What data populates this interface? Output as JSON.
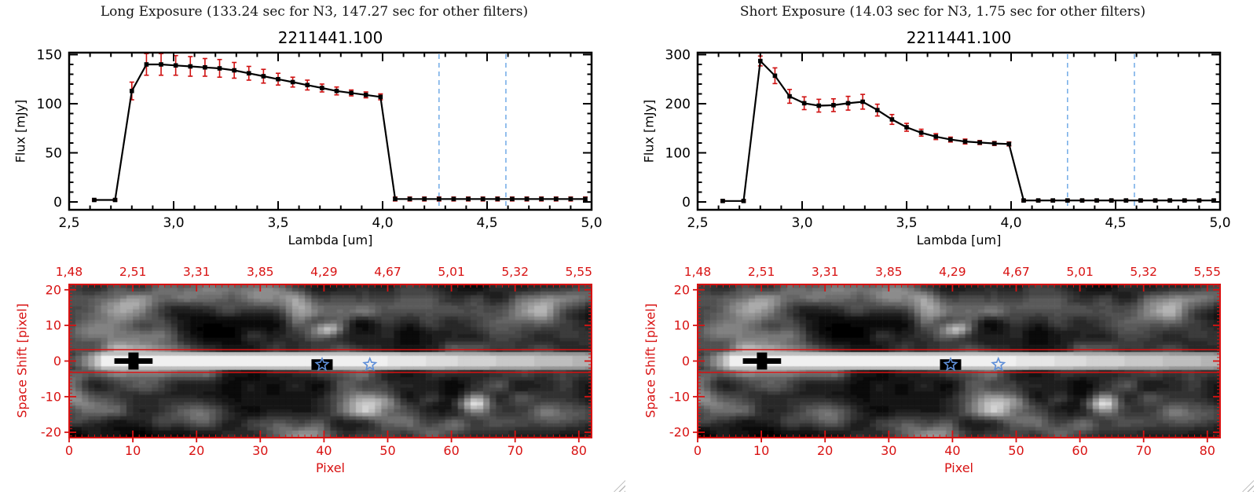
{
  "colors": {
    "axis_red": "#d81212",
    "line_black": "#000000",
    "error_red": "#cf1010",
    "guide_blue": "#7ab0e8",
    "star_blue": "#5f8fd8",
    "background": "#ffffff"
  },
  "chart_data": [
    {
      "type": "line",
      "window_title": "Long Exposure (133.24 sec for N3, 147.27 sec for other filters)",
      "title": "2211441.100",
      "xlabel": "Lambda [um]",
      "ylabel": "Flux [mJy]",
      "xlim": [
        2.5,
        5.0
      ],
      "ylim": [
        -8,
        152
      ],
      "xticks": [
        2.5,
        3.0,
        3.5,
        4.0,
        4.5,
        5.0
      ],
      "xtick_labels": [
        "2,5",
        "3,0",
        "3,5",
        "4,0",
        "4,5",
        "5,0"
      ],
      "yticks": [
        0,
        50,
        100,
        150
      ],
      "ytick_labels": [
        "0",
        "50",
        "100",
        "150"
      ],
      "x": [
        2.62,
        2.72,
        2.8,
        2.87,
        2.94,
        3.01,
        3.08,
        3.15,
        3.22,
        3.29,
        3.36,
        3.43,
        3.5,
        3.57,
        3.64,
        3.71,
        3.78,
        3.85,
        3.92,
        3.99,
        4.06,
        4.13,
        4.2,
        4.27,
        4.34,
        4.41,
        4.48,
        4.55,
        4.62,
        4.69,
        4.76,
        4.83,
        4.9,
        4.97
      ],
      "y": [
        2,
        2,
        113,
        140,
        140,
        139,
        138,
        137,
        136,
        134,
        131,
        128,
        125,
        122,
        119,
        116,
        113,
        111,
        109,
        107,
        3,
        3,
        3,
        3,
        3,
        3,
        3,
        3,
        3,
        3,
        3,
        3,
        3,
        3
      ],
      "yerr": [
        1,
        1,
        9,
        11,
        11,
        10,
        10,
        9,
        9,
        8,
        7,
        7,
        6,
        5,
        5,
        4,
        4,
        3,
        3,
        3,
        2,
        2,
        2,
        2,
        2,
        2,
        2,
        2,
        2,
        2,
        2,
        2,
        2,
        2
      ],
      "guide_lines_x": [
        4.27,
        4.59
      ],
      "marker": "square",
      "legend": "none",
      "grid": false
    },
    {
      "type": "line",
      "window_title": "Short Exposure (14.03 sec for N3, 1.75 sec for other filters)",
      "title": "2211441.100",
      "xlabel": "Lambda [um]",
      "ylabel": "Flux [mJy]",
      "xlim": [
        2.5,
        5.0
      ],
      "ylim": [
        -16,
        304
      ],
      "xticks": [
        2.5,
        3.0,
        3.5,
        4.0,
        4.5,
        5.0
      ],
      "xtick_labels": [
        "2,5",
        "3,0",
        "3,5",
        "4,0",
        "4,5",
        "5,0"
      ],
      "yticks": [
        0,
        100,
        200,
        300
      ],
      "ytick_labels": [
        "0",
        "100",
        "200",
        "300"
      ],
      "x": [
        2.62,
        2.72,
        2.8,
        2.87,
        2.94,
        3.01,
        3.08,
        3.15,
        3.22,
        3.29,
        3.36,
        3.43,
        3.5,
        3.57,
        3.64,
        3.71,
        3.78,
        3.85,
        3.92,
        3.99,
        4.06,
        4.13,
        4.2,
        4.27,
        4.34,
        4.41,
        4.48,
        4.55,
        4.62,
        4.69,
        4.76,
        4.83,
        4.9,
        4.97
      ],
      "y": [
        2,
        2,
        287,
        257,
        215,
        201,
        196,
        197,
        201,
        204,
        187,
        168,
        152,
        141,
        133,
        127,
        123,
        121,
        119,
        118,
        3,
        3,
        3,
        3,
        3,
        3,
        3,
        3,
        3,
        3,
        3,
        3,
        3,
        3
      ],
      "yerr": [
        2,
        2,
        10,
        16,
        14,
        13,
        13,
        13,
        14,
        15,
        12,
        10,
        8,
        7,
        6,
        5,
        5,
        4,
        4,
        4,
        2,
        2,
        2,
        2,
        2,
        2,
        2,
        2,
        2,
        2,
        2,
        2,
        2,
        2
      ],
      "guide_lines_x": [
        4.27,
        4.59
      ],
      "marker": "square",
      "legend": "none",
      "grid": false
    },
    {
      "type": "heatmap",
      "colormap": "grayscale",
      "xlabel": "Pixel",
      "ylabel": "Space Shift [pixel]",
      "xlim": [
        0,
        82
      ],
      "ylim": [
        -21.5,
        21.5
      ],
      "xticks": [
        0,
        10,
        20,
        30,
        40,
        50,
        60,
        70,
        80
      ],
      "xtick_labels": [
        "0",
        "10",
        "20",
        "30",
        "40",
        "50",
        "60",
        "70",
        "80"
      ],
      "yticks": [
        20,
        10,
        0,
        -10,
        -20
      ],
      "ytick_labels": [
        "20",
        "10",
        "0",
        "-10",
        "-20"
      ],
      "top_ticks_x": [
        0,
        10,
        20,
        30,
        40,
        50,
        60,
        70,
        80
      ],
      "top_tick_labels": [
        "1,48",
        "2,51",
        "3,31",
        "3,85",
        "4,29",
        "4,67",
        "5,01",
        "5,32",
        "5,55"
      ],
      "aperture_y": [
        3.2,
        -3.2
      ],
      "markers": {
        "cross": {
          "x": 10.1,
          "y": 0
        },
        "square": {
          "x": 39.7,
          "y": -1
        },
        "stars": [
          {
            "x": 39.7,
            "y": -1
          },
          {
            "x": 47.2,
            "y": -1
          }
        ]
      },
      "blobs": [
        {
          "x": 9,
          "y": 15,
          "rx": 4,
          "ry": 3.5,
          "i": 0.55
        },
        {
          "x": 3,
          "y": 9,
          "rx": 3,
          "ry": 3,
          "i": 0.35
        },
        {
          "x": 22,
          "y": 18,
          "rx": 4,
          "ry": 3,
          "i": 0.35
        },
        {
          "x": 31,
          "y": 18,
          "rx": 3.5,
          "ry": 3,
          "i": 0.5
        },
        {
          "x": 40,
          "y": 9,
          "rx": 1.8,
          "ry": 1.5,
          "i": 0.65
        },
        {
          "x": 37,
          "y": 14,
          "rx": 3,
          "ry": 2.5,
          "i": 0.3
        },
        {
          "x": 53,
          "y": 17,
          "rx": 5,
          "ry": 3.5,
          "i": 0.3
        },
        {
          "x": 69,
          "y": 13,
          "rx": 6,
          "ry": 4,
          "i": 0.32
        },
        {
          "x": 78,
          "y": 17,
          "rx": 4,
          "ry": 3,
          "i": 0.3
        },
        {
          "x": 3,
          "y": -12,
          "rx": 3,
          "ry": 3,
          "i": 0.3
        },
        {
          "x": 20,
          "y": -15,
          "rx": 3.5,
          "ry": 3,
          "i": 0.45
        },
        {
          "x": 34,
          "y": -18,
          "rx": 4,
          "ry": 3,
          "i": 0.28
        },
        {
          "x": 47,
          "y": -13,
          "rx": 3,
          "ry": 2.5,
          "i": 0.42
        },
        {
          "x": 63,
          "y": -12,
          "rx": 2,
          "ry": 1.8,
          "i": 0.6
        },
        {
          "x": 58,
          "y": -19,
          "rx": 5,
          "ry": 3,
          "i": 0.3
        },
        {
          "x": 76,
          "y": -15,
          "rx": 5,
          "ry": 3.5,
          "i": 0.38
        },
        {
          "x": 12,
          "y": -7,
          "rx": 3,
          "ry": 2,
          "i": 0.25
        }
      ]
    },
    {
      "type": "heatmap",
      "colormap": "grayscale",
      "xlabel": "Pixel",
      "ylabel": "Space Shift [pixel]",
      "xlim": [
        0,
        82
      ],
      "ylim": [
        -21.5,
        21.5
      ],
      "xticks": [
        0,
        10,
        20,
        30,
        40,
        50,
        60,
        70,
        80
      ],
      "xtick_labels": [
        "0",
        "10",
        "20",
        "30",
        "40",
        "50",
        "60",
        "70",
        "80"
      ],
      "yticks": [
        20,
        10,
        0,
        -10,
        -20
      ],
      "ytick_labels": [
        "20",
        "10",
        "0",
        "-10",
        "-20"
      ],
      "top_ticks_x": [
        0,
        10,
        20,
        30,
        40,
        50,
        60,
        70,
        80
      ],
      "top_tick_labels": [
        "1,48",
        "2,51",
        "3,31",
        "3,85",
        "4,29",
        "4,67",
        "5,01",
        "5,32",
        "5,55"
      ],
      "aperture_y": [
        3.2,
        -3.2
      ],
      "markers": {
        "cross": {
          "x": 10.1,
          "y": 0
        },
        "square": {
          "x": 39.7,
          "y": -1
        },
        "stars": [
          {
            "x": 39.7,
            "y": -1
          },
          {
            "x": 47.2,
            "y": -1
          }
        ]
      },
      "blobs": [
        {
          "x": 9,
          "y": 15,
          "rx": 4,
          "ry": 3.5,
          "i": 0.55
        },
        {
          "x": 3,
          "y": 9,
          "rx": 3,
          "ry": 3,
          "i": 0.35
        },
        {
          "x": 22,
          "y": 18,
          "rx": 4,
          "ry": 3,
          "i": 0.35
        },
        {
          "x": 31,
          "y": 18,
          "rx": 3.5,
          "ry": 3,
          "i": 0.5
        },
        {
          "x": 40,
          "y": 9,
          "rx": 1.8,
          "ry": 1.5,
          "i": 0.65
        },
        {
          "x": 37,
          "y": 14,
          "rx": 3,
          "ry": 2.5,
          "i": 0.3
        },
        {
          "x": 53,
          "y": 17,
          "rx": 5,
          "ry": 3.5,
          "i": 0.3
        },
        {
          "x": 69,
          "y": 13,
          "rx": 6,
          "ry": 4,
          "i": 0.32
        },
        {
          "x": 78,
          "y": 17,
          "rx": 4,
          "ry": 3,
          "i": 0.3
        },
        {
          "x": 3,
          "y": -12,
          "rx": 3,
          "ry": 3,
          "i": 0.3
        },
        {
          "x": 20,
          "y": -15,
          "rx": 3.5,
          "ry": 3,
          "i": 0.45
        },
        {
          "x": 34,
          "y": -18,
          "rx": 4,
          "ry": 3,
          "i": 0.28
        },
        {
          "x": 47,
          "y": -13,
          "rx": 3,
          "ry": 2.5,
          "i": 0.42
        },
        {
          "x": 63,
          "y": -12,
          "rx": 2,
          "ry": 1.8,
          "i": 0.6
        },
        {
          "x": 58,
          "y": -19,
          "rx": 5,
          "ry": 3,
          "i": 0.3
        },
        {
          "x": 76,
          "y": -15,
          "rx": 5,
          "ry": 3.5,
          "i": 0.38
        },
        {
          "x": 12,
          "y": -7,
          "rx": 3,
          "ry": 2,
          "i": 0.25
        }
      ]
    }
  ]
}
